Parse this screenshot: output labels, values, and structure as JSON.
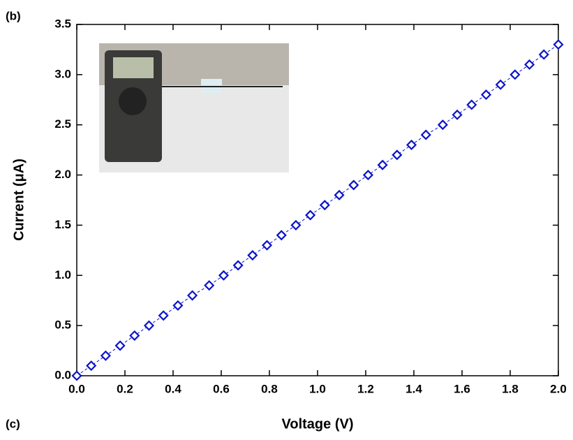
{
  "chart_data": {
    "type": "line",
    "panel_labels": [
      "(b)",
      "(c)"
    ],
    "x_label": "Voltage (V)",
    "y_label": "Current (μA)",
    "x": [
      0,
      0.06,
      0.12,
      0.18,
      0.24,
      0.3,
      0.36,
      0.42,
      0.48,
      0.55,
      0.61,
      0.67,
      0.73,
      0.79,
      0.85,
      0.91,
      0.97,
      1.03,
      1.09,
      1.15,
      1.21,
      1.27,
      1.33,
      1.39,
      1.45,
      1.52,
      1.58,
      1.64,
      1.7,
      1.76,
      1.82,
      1.88,
      1.94,
      2.0
    ],
    "series": [
      {
        "color": "#0a14c8",
        "marker": "diamond",
        "values": [
          0.0,
          0.1,
          0.2,
          0.3,
          0.4,
          0.5,
          0.6,
          0.7,
          0.8,
          0.9,
          1.0,
          1.1,
          1.2,
          1.3,
          1.4,
          1.5,
          1.6,
          1.7,
          1.8,
          1.9,
          2.0,
          2.1,
          2.2,
          2.3,
          2.4,
          2.5,
          2.6,
          2.7,
          2.8,
          2.9,
          3.0,
          3.1,
          3.2,
          3.3
        ]
      }
    ],
    "xlim": [
      0,
      2.0
    ],
    "ylim": [
      0,
      3.5
    ],
    "xticks": [
      {
        "value": 0,
        "label": "0.0"
      },
      {
        "value": 0.2,
        "label": "0.2"
      },
      {
        "value": 0.4,
        "label": "0.4"
      },
      {
        "value": 0.6,
        "label": "0.6"
      },
      {
        "value": 0.8,
        "label": "0.8"
      },
      {
        "value": 1.0,
        "label": "1.0"
      },
      {
        "value": 1.2,
        "label": "1.2"
      },
      {
        "value": 1.4,
        "label": "1.4"
      },
      {
        "value": 1.6,
        "label": "1.6"
      },
      {
        "value": 1.8,
        "label": "1.8"
      },
      {
        "value": 2.0,
        "label": "2.0"
      }
    ],
    "yticks": [
      {
        "value": 0,
        "label": "0.0"
      },
      {
        "value": 0.5,
        "label": "0.5"
      },
      {
        "value": 1.0,
        "label": "1.0"
      },
      {
        "value": 1.5,
        "label": "1.5"
      },
      {
        "value": 2.0,
        "label": "2.0"
      },
      {
        "value": 2.5,
        "label": "2.5"
      },
      {
        "value": 3.0,
        "label": "3.0"
      },
      {
        "value": 3.5,
        "label": "3.5"
      }
    ],
    "grid": false
  }
}
